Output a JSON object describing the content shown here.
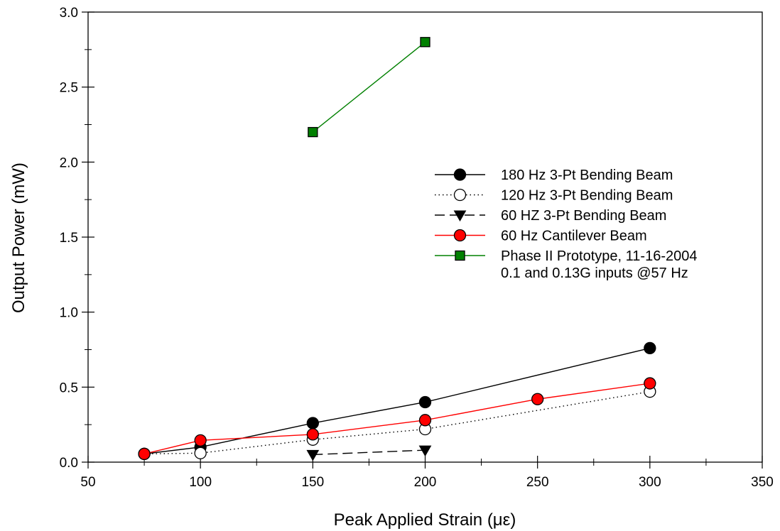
{
  "chart_data": {
    "type": "line",
    "title": "",
    "xlabel": "Peak Applied Strain (με)",
    "ylabel": "Output Power (mW)",
    "xlim": [
      50,
      350
    ],
    "ylim": [
      0,
      3.0
    ],
    "xticks": [
      "50",
      "100",
      "150",
      "200",
      "250",
      "300",
      "350"
    ],
    "yticks": [
      "0.0",
      "0.5",
      "1.0",
      "1.5",
      "2.0",
      "2.5",
      "3.0"
    ],
    "grid": false,
    "legend_position": "center-right",
    "series": [
      {
        "name": "180 Hz 3-Pt Bending Beam",
        "line": "solid",
        "color": "#000000",
        "marker": "circle",
        "marker_fill": "#000000",
        "x": [
          75,
          100,
          150,
          200,
          300
        ],
        "y": [
          0.055,
          0.1,
          0.26,
          0.4,
          0.76
        ]
      },
      {
        "name": "120 Hz 3-Pt Bending Beam",
        "line": "dotted",
        "color": "#000000",
        "marker": "circle",
        "marker_fill": "#ffffff",
        "x": [
          75,
          100,
          150,
          200,
          300
        ],
        "y": [
          0.055,
          0.06,
          0.15,
          0.22,
          0.47
        ]
      },
      {
        "name": "60 HZ 3-Pt Bending Beam",
        "line": "dashed",
        "color": "#000000",
        "marker": "triangle-down",
        "marker_fill": "#000000",
        "x": [
          150,
          200
        ],
        "y": [
          0.05,
          0.08
        ]
      },
      {
        "name": "60 Hz Cantilever Beam",
        "line": "solid",
        "color": "#ff0000",
        "marker": "circle",
        "marker_fill": "#ff0000",
        "x": [
          75,
          100,
          150,
          200,
          250,
          300
        ],
        "y": [
          0.055,
          0.145,
          0.185,
          0.28,
          0.42,
          0.525
        ]
      },
      {
        "name": "Phase II Prototype, 11-16-2004",
        "name_line2": "0.1 and 0.13G inputs @57 Hz",
        "line": "solid",
        "color": "#008000",
        "marker": "square",
        "marker_fill": "#008000",
        "x": [
          150,
          200
        ],
        "y": [
          2.2,
          2.8
        ]
      }
    ]
  }
}
